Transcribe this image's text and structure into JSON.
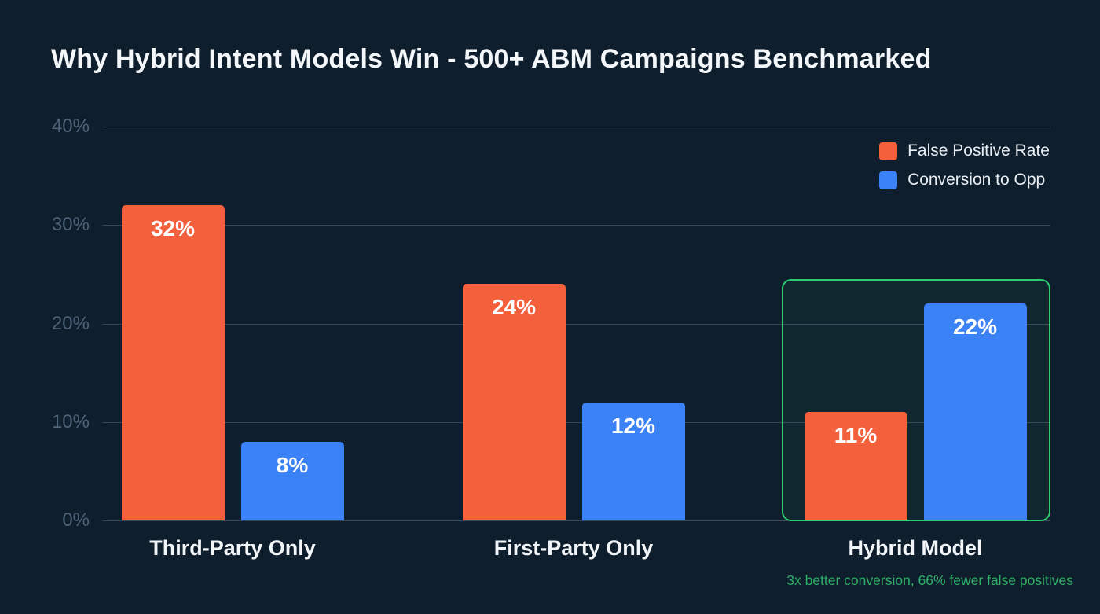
{
  "title": "Why Hybrid Intent Models Win - 500+ ABM Campaigns Benchmarked",
  "chart_data": {
    "type": "bar",
    "title": "Why Hybrid Intent Models Win - 500+ ABM Campaigns Benchmarked",
    "categories": [
      "Third-Party Only",
      "First-Party Only",
      "Hybrid Model"
    ],
    "series": [
      {
        "name": "False Positive Rate",
        "color": "#f4603c",
        "values": [
          32,
          24,
          11
        ]
      },
      {
        "name": "Conversion to Opp",
        "color": "#3b82f6",
        "values": [
          8,
          12,
          22
        ]
      }
    ],
    "value_suffix": "%",
    "ylim": [
      0,
      40
    ],
    "yticks": [
      0,
      10,
      20,
      30,
      40
    ],
    "ytick_labels": [
      "0%",
      "10%",
      "20%",
      "30%",
      "40%"
    ],
    "grid": true,
    "legend_position": "top-right",
    "highlight": {
      "category": "Hybrid Model",
      "color": "#2ecc71",
      "annotation": "3x better conversion, 66% fewer false positives"
    }
  },
  "colors": {
    "background": "#0f1e2d",
    "false_positive_bar": "#f4603c",
    "conversion_bar": "#3b82f6",
    "highlight_green": "#2ecc71",
    "annotation_green": "#2fae68",
    "axis_label": "#4e6378",
    "title_text": "#f4f7fa"
  }
}
